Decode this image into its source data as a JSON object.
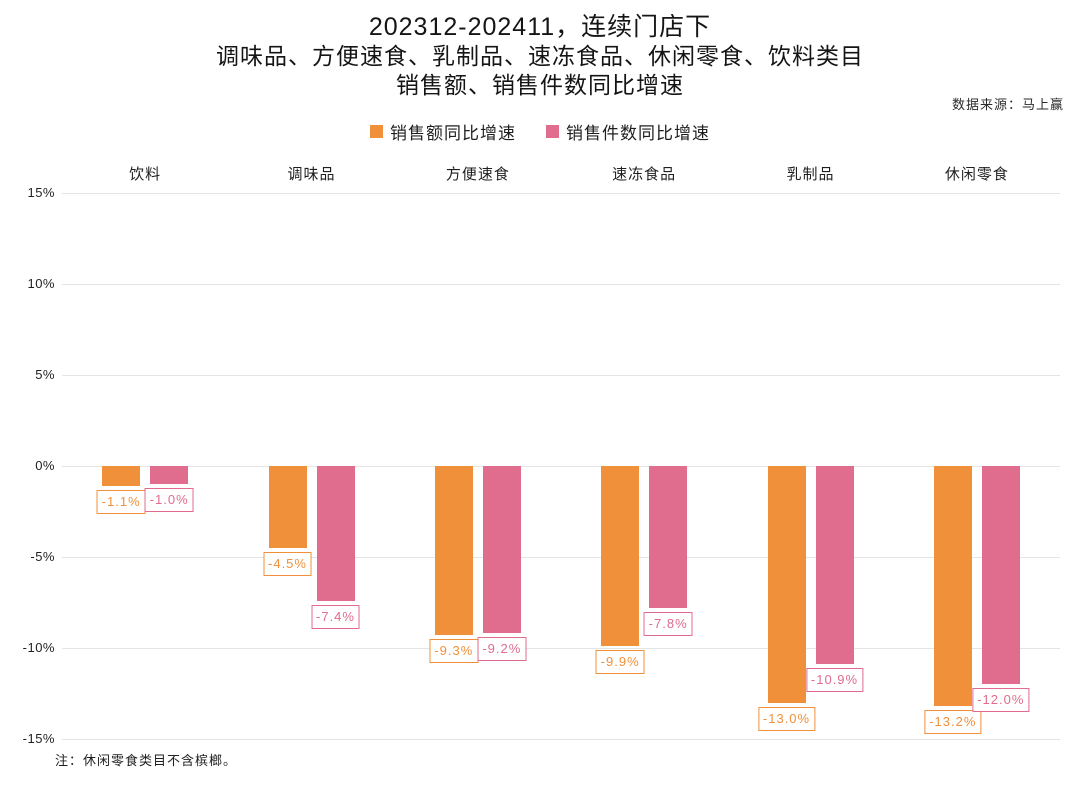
{
  "title": {
    "line1": "202312-202411，连续门店下",
    "line2": "调味品、方便速食、乳制品、速冻食品、休闲零食、饮料类目",
    "line3": "销售额、销售件数同比增速"
  },
  "source": "数据来源：马上赢",
  "footnote": "注：休闲零食类目不含槟榔。",
  "colors": {
    "sales_amount": "#F0903B",
    "sales_count": "#E06C8E",
    "gridline": "#E4E4E4",
    "text": "#1F1F1F"
  },
  "chart_data": {
    "type": "bar",
    "title": "202312-202411，连续门店下 调味品、方便速食、乳制品、速冻食品、休闲零食、饮料类目 销售额、销售件数同比增速",
    "categories": [
      "饮料",
      "调味品",
      "方便速食",
      "速冻食品",
      "乳制品",
      "休闲零食"
    ],
    "series": [
      {
        "name": "销售额同比增速",
        "color": "#F0903B",
        "values": [
          -1.1,
          -4.5,
          -9.3,
          -9.9,
          -13.0,
          -13.2
        ],
        "labels": [
          "-1.1%",
          "-4.5%",
          "-9.3%",
          "-9.9%",
          "-13.0%",
          "-13.2%"
        ]
      },
      {
        "name": "销售件数同比增速",
        "color": "#E06C8E",
        "values": [
          -1.0,
          -7.4,
          -9.2,
          -7.8,
          -10.9,
          -12.0
        ],
        "labels": [
          "-1.0%",
          "-7.4%",
          "-9.2%",
          "-7.8%",
          "-10.9%",
          "-12.0%"
        ]
      }
    ],
    "y_axis": {
      "min": -15,
      "max": 15,
      "step": 5,
      "tick_labels": [
        "15%",
        "10%",
        "5%",
        "0%",
        "-5%",
        "-10%",
        "-15%"
      ]
    },
    "legend_position": "top",
    "grid": true,
    "category_labels_position": "top",
    "value_labels": "boxed, below bar ends"
  }
}
